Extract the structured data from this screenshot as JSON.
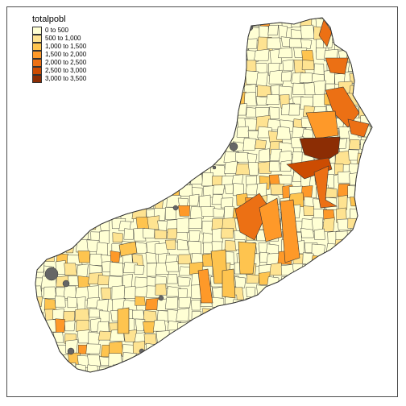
{
  "legend": {
    "title": "totalpobl",
    "classes": [
      {
        "label": "0 to 500",
        "color": "#ffffd4"
      },
      {
        "label": "500 to 1,000",
        "color": "#fee391"
      },
      {
        "label": "1,000 to 1,500",
        "color": "#fec44f"
      },
      {
        "label": "1,500 to 2,000",
        "color": "#fe9929"
      },
      {
        "label": "2,000 to 2,500",
        "color": "#ec7014"
      },
      {
        "label": "2,500 to 3,000",
        "color": "#cc4c02"
      },
      {
        "label": "3,000 to 3,500",
        "color": "#8c2d04"
      }
    ]
  },
  "colors": {
    "border": "#333333",
    "missing": "#666666",
    "frame": "#4d4d4d"
  }
}
